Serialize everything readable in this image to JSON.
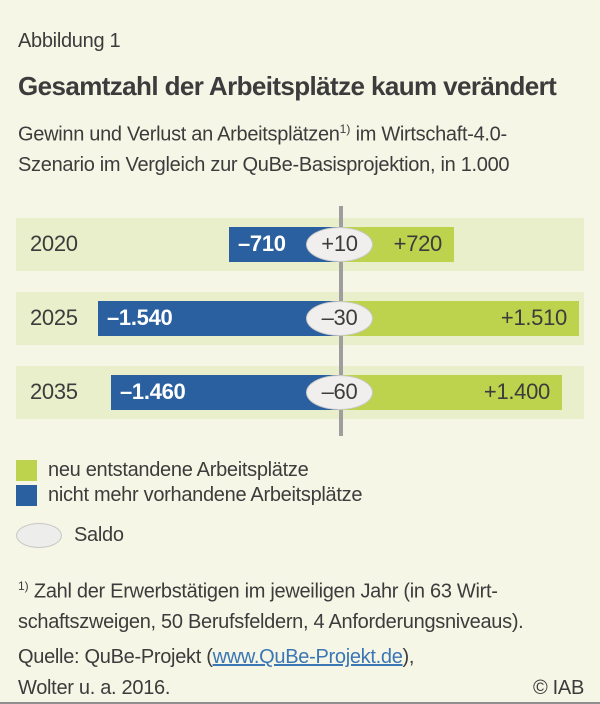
{
  "header": {
    "kicker": "Abbildung 1",
    "title": "Gesamtzahl der Arbeitsplätze kaum verändert",
    "subtitle_pre": "Gewinn und Verlust an Arbeitsplätzen",
    "subtitle_footnote_marker": "1)",
    "subtitle_post": " im Wirtschaft-4.0-",
    "subtitle_line2": "Szenario im Vergleich zur QuBe-Basisprojektion, in 1.000"
  },
  "chart_data": {
    "type": "bar",
    "variant": "diverging-horizontal",
    "title": "Gesamtzahl der Arbeitsplätze kaum verändert",
    "subtitle": "Gewinn und Verlust an Arbeitsplätzen im Wirtschaft-4.0-Szenario im Vergleich zur QuBe-Basisprojektion",
    "unit": "in 1.000",
    "categories": [
      "2020",
      "2025",
      "2035"
    ],
    "series": [
      {
        "name": "neu entstandene Arbeitsplätze",
        "values": [
          720,
          1510,
          1400
        ]
      },
      {
        "name": "nicht mehr vorhandene Arbeitsplätze",
        "values": [
          -710,
          -1540,
          -1460
        ]
      },
      {
        "name": "Saldo",
        "values": [
          10,
          -30,
          -60
        ]
      }
    ],
    "rows": [
      {
        "year": "2020",
        "loss": -710,
        "gain": 720,
        "saldo": 10,
        "loss_label": "–710",
        "gain_label": "+720",
        "saldo_label": "+10"
      },
      {
        "year": "2025",
        "loss": -1540,
        "gain": 1510,
        "saldo": -30,
        "loss_label": "–1.540",
        "gain_label": "+1.510",
        "saldo_label": "–30"
      },
      {
        "year": "2035",
        "loss": -1460,
        "gain": 1400,
        "saldo": -60,
        "loss_label": "–1.460",
        "gain_label": "+1.400",
        "saldo_label": "–60"
      }
    ],
    "colors": {
      "gain": "#bdd24d",
      "loss": "#2a609f",
      "saldo_fill": "#f0efed",
      "band": "#e9eecb",
      "axis_line": "#9e9e9e",
      "background": "#f6f6e6"
    },
    "axis": {
      "center_value": 0,
      "grid": false,
      "legend_position": "bottom"
    }
  },
  "legend": {
    "items": [
      {
        "label": "neu entstandene Arbeitsplätze"
      },
      {
        "label": "nicht mehr vorhandene Arbeitsplätze"
      },
      {
        "label": "Saldo"
      }
    ]
  },
  "footnote": {
    "marker": "1)",
    "line1": " Zahl der Erwerbstätigen im jeweiligen Jahr (in 63 Wirt-",
    "line2": "schaftszweigen, 50 Berufsfeldern, 4 Anforderungsniveaus)."
  },
  "source": {
    "prefix": "Quelle: QuBe-Projekt (",
    "link": "www.QuBe-Projekt.de",
    "suffix": "),",
    "line2": "Wolter u. a. 2016.",
    "copyright": "© IAB"
  }
}
